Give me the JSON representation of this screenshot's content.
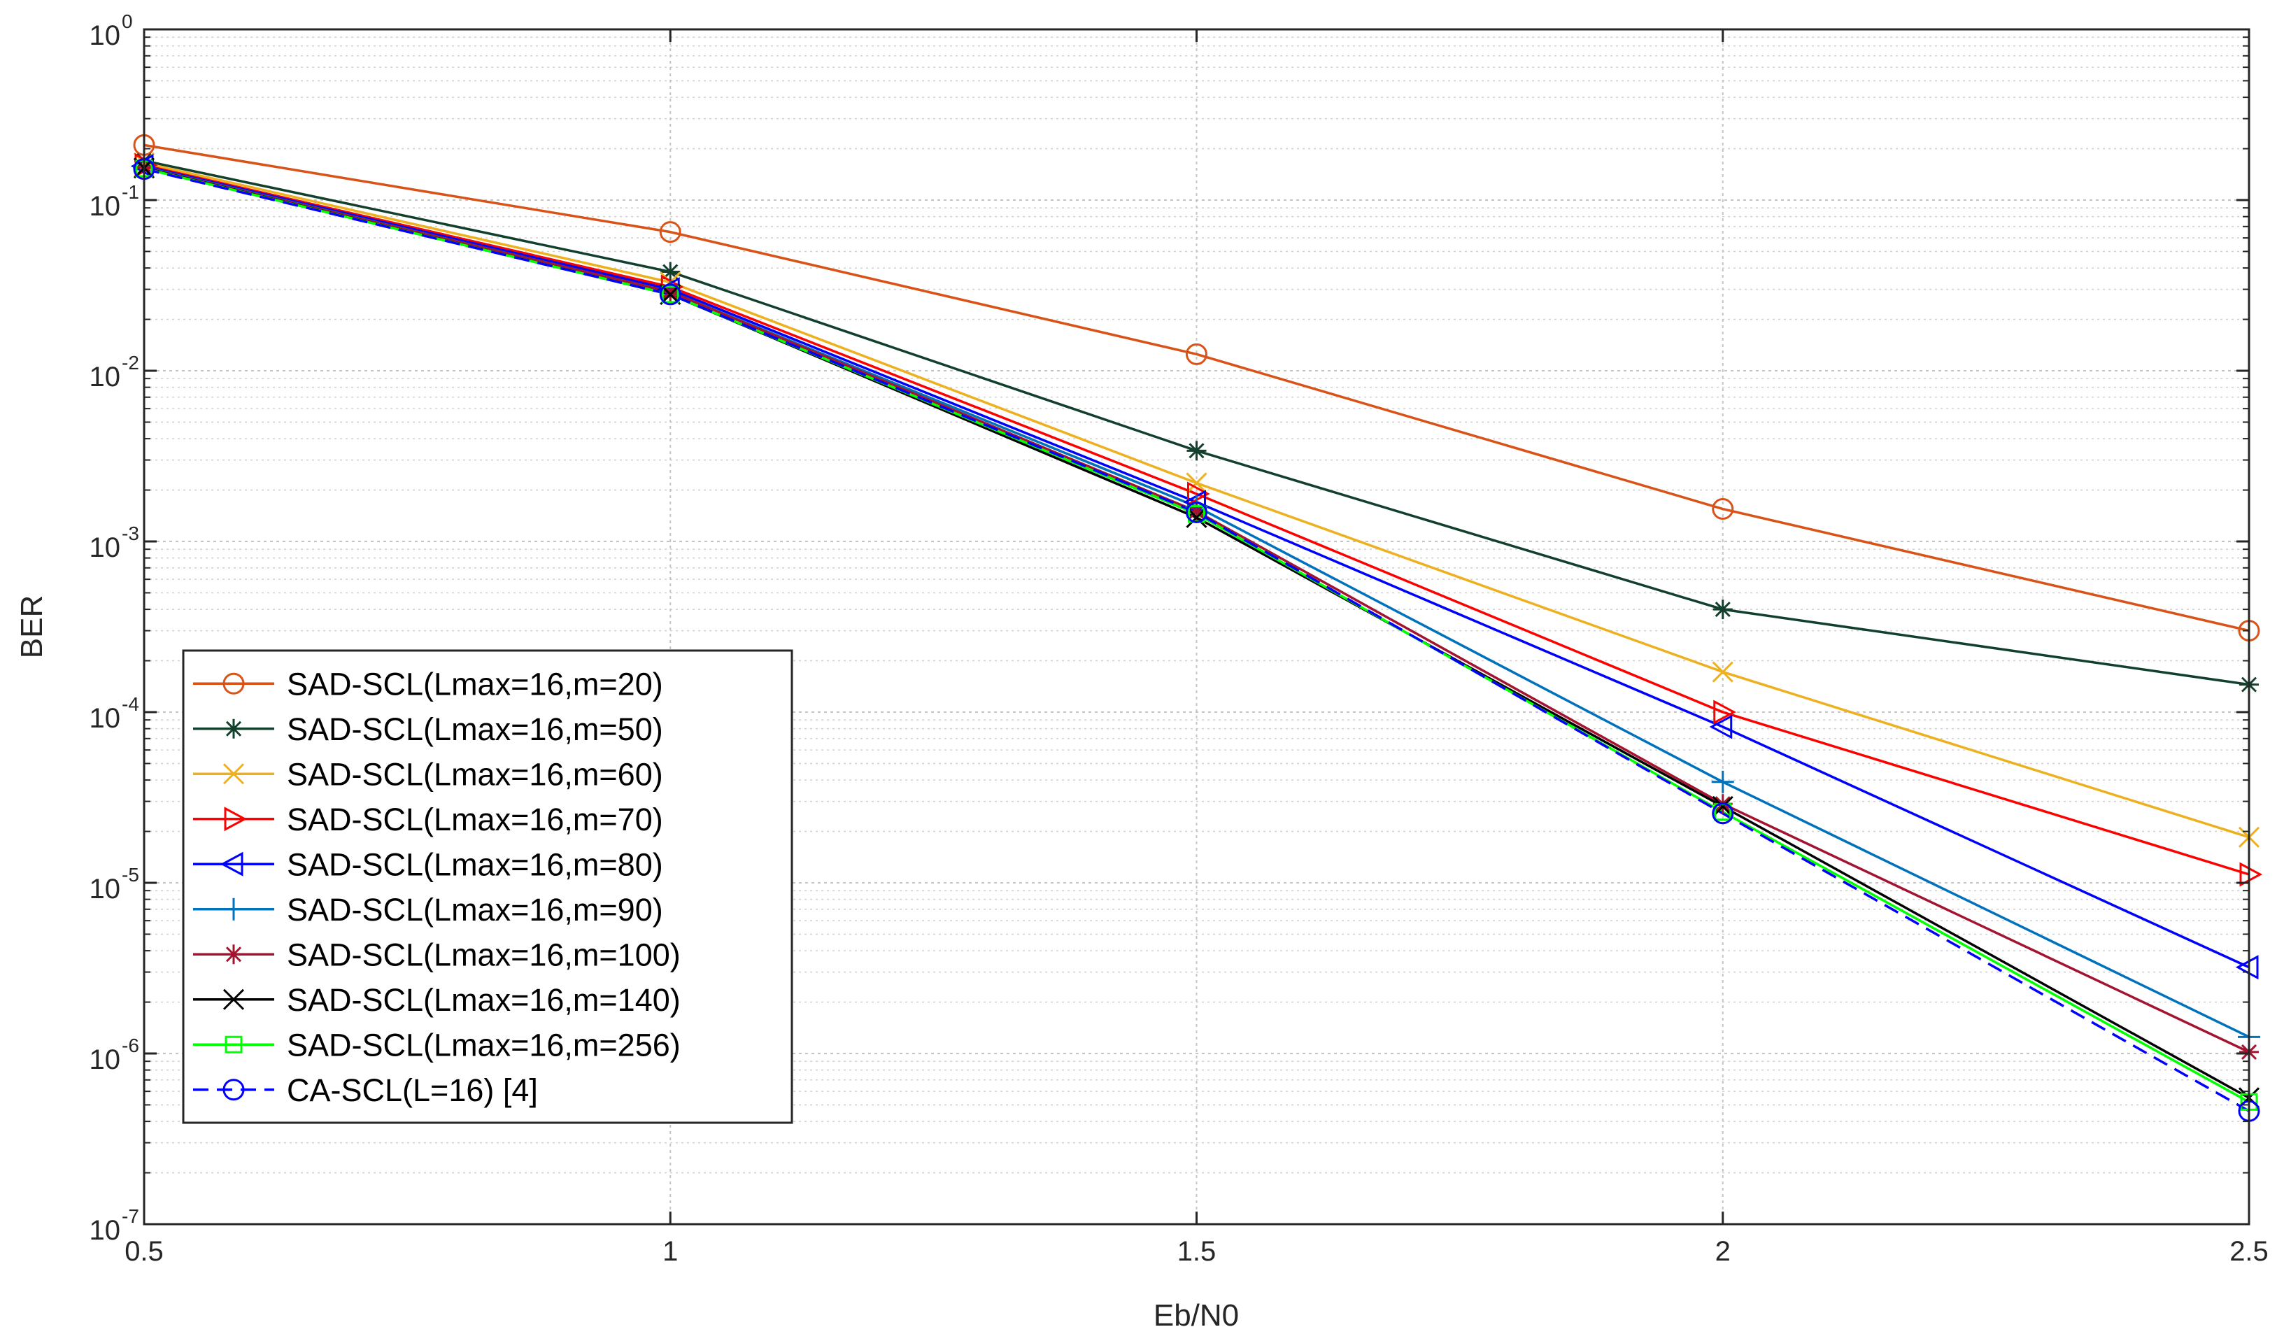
{
  "chart_data": {
    "type": "line",
    "title": "",
    "xlabel": "Eb/N0",
    "ylabel": "BER",
    "xscale": "linear",
    "yscale": "log",
    "xlim": [
      0.5,
      2.5
    ],
    "ylim": [
      1e-07,
      1
    ],
    "grid": true,
    "legend_position": "bottom-left",
    "x": [
      0.5,
      1,
      1.5,
      2,
      2.5
    ],
    "x_ticks": [
      {
        "value": 0.5,
        "label": "0.5"
      },
      {
        "value": 1,
        "label": "1"
      },
      {
        "value": 1.5,
        "label": "1.5"
      },
      {
        "value": 2,
        "label": "2"
      },
      {
        "value": 2.5,
        "label": "2.5"
      }
    ],
    "y_ticks": [
      {
        "value": 1e-07,
        "base": "10",
        "exp": "-7"
      },
      {
        "value": 1e-06,
        "base": "10",
        "exp": "-6"
      },
      {
        "value": 1e-05,
        "base": "10",
        "exp": "-5"
      },
      {
        "value": 0.0001,
        "base": "10",
        "exp": "-4"
      },
      {
        "value": 0.001,
        "base": "10",
        "exp": "-3"
      },
      {
        "value": 0.01,
        "base": "10",
        "exp": "-2"
      },
      {
        "value": 0.1,
        "base": "10",
        "exp": "-1"
      },
      {
        "value": 1,
        "base": "10",
        "exp": "0"
      }
    ],
    "series": [
      {
        "name": "SAD-SCL(Lmax=16,m=20)",
        "color": "#D95319",
        "marker": "circle",
        "dash": false,
        "values": [
          0.21,
          0.065,
          0.0125,
          0.00155,
          0.0003
        ]
      },
      {
        "name": "SAD-SCL(Lmax=16,m=50)",
        "color": "#12402C",
        "marker": "asterisk",
        "dash": false,
        "values": [
          0.17,
          0.038,
          0.0034,
          0.0004,
          0.000145
        ]
      },
      {
        "name": "SAD-SCL(Lmax=16,m=60)",
        "color": "#EDB120",
        "marker": "x",
        "dash": false,
        "values": [
          0.165,
          0.033,
          0.0022,
          0.000172,
          1.85e-05
        ]
      },
      {
        "name": "SAD-SCL(Lmax=16,m=70)",
        "color": "#FF0000",
        "marker": "triangle-right",
        "dash": false,
        "values": [
          0.16,
          0.031,
          0.0019,
          0.0001,
          1.12e-05
        ]
      },
      {
        "name": "SAD-SCL(Lmax=16,m=80)",
        "color": "#0000FF",
        "marker": "triangle-left",
        "dash": false,
        "values": [
          0.158,
          0.03,
          0.0017,
          8.2e-05,
          3.2e-06
        ]
      },
      {
        "name": "SAD-SCL(Lmax=16,m=90)",
        "color": "#0072BD",
        "marker": "plus",
        "dash": false,
        "values": [
          0.156,
          0.029,
          0.0016,
          3.9e-05,
          1.25e-06
        ]
      },
      {
        "name": "SAD-SCL(Lmax=16,m=100)",
        "color": "#A2142F",
        "marker": "asterisk",
        "dash": false,
        "values": [
          0.155,
          0.029,
          0.0015,
          2.9e-05,
          1.02e-06
        ]
      },
      {
        "name": "SAD-SCL(Lmax=16,m=140)",
        "color": "#000000",
        "marker": "x",
        "dash": false,
        "values": [
          0.154,
          0.028,
          0.00138,
          2.8e-05,
          5.5e-07
        ]
      },
      {
        "name": "SAD-SCL(Lmax=16,m=256)",
        "color": "#00FF00",
        "marker": "square",
        "dash": false,
        "values": [
          0.153,
          0.028,
          0.00145,
          2.6e-05,
          5.2e-07
        ]
      },
      {
        "name": "CA-SCL(L=16) [4]",
        "color": "#0000FF",
        "marker": "circle",
        "dash": true,
        "values": [
          0.152,
          0.028,
          0.00148,
          2.55e-05,
          4.6e-07
        ]
      }
    ]
  }
}
